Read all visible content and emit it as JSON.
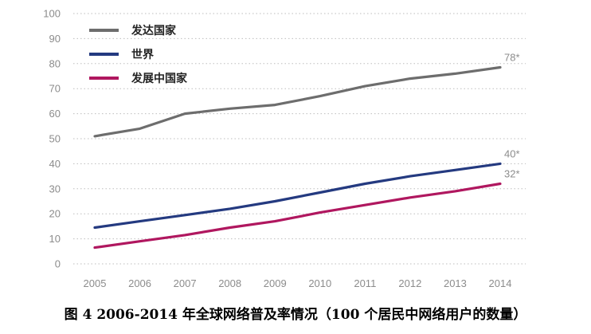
{
  "caption": "图 4 2006-2014 年全球网络普及率情况（100 个居民中网络用户的数量）",
  "chart_data": {
    "type": "line",
    "title": "",
    "xlabel": "",
    "ylabel": "",
    "x": [
      2005,
      2006,
      2007,
      2008,
      2009,
      2010,
      2011,
      2012,
      2013,
      2014
    ],
    "ylim": [
      0,
      100
    ],
    "yticks": [
      0,
      10,
      20,
      30,
      40,
      50,
      60,
      70,
      80,
      90,
      100
    ],
    "grid": true,
    "legend_position": "top-left",
    "series": [
      {
        "name": "发达国家",
        "color": "#6d6d6d",
        "values": [
          51,
          54,
          60,
          62,
          63.5,
          67,
          71,
          74,
          76,
          78.5
        ],
        "end_label": "78*"
      },
      {
        "name": "世界",
        "color": "#243a80",
        "values": [
          14.5,
          17,
          19.5,
          22,
          25,
          28.5,
          32,
          35,
          37.5,
          40
        ],
        "end_label": "40*"
      },
      {
        "name": "发展中国家",
        "color": "#b0175f",
        "values": [
          6.5,
          9,
          11.5,
          14.5,
          17,
          20.5,
          23.5,
          26.5,
          29,
          32
        ],
        "end_label": "32*"
      }
    ]
  }
}
